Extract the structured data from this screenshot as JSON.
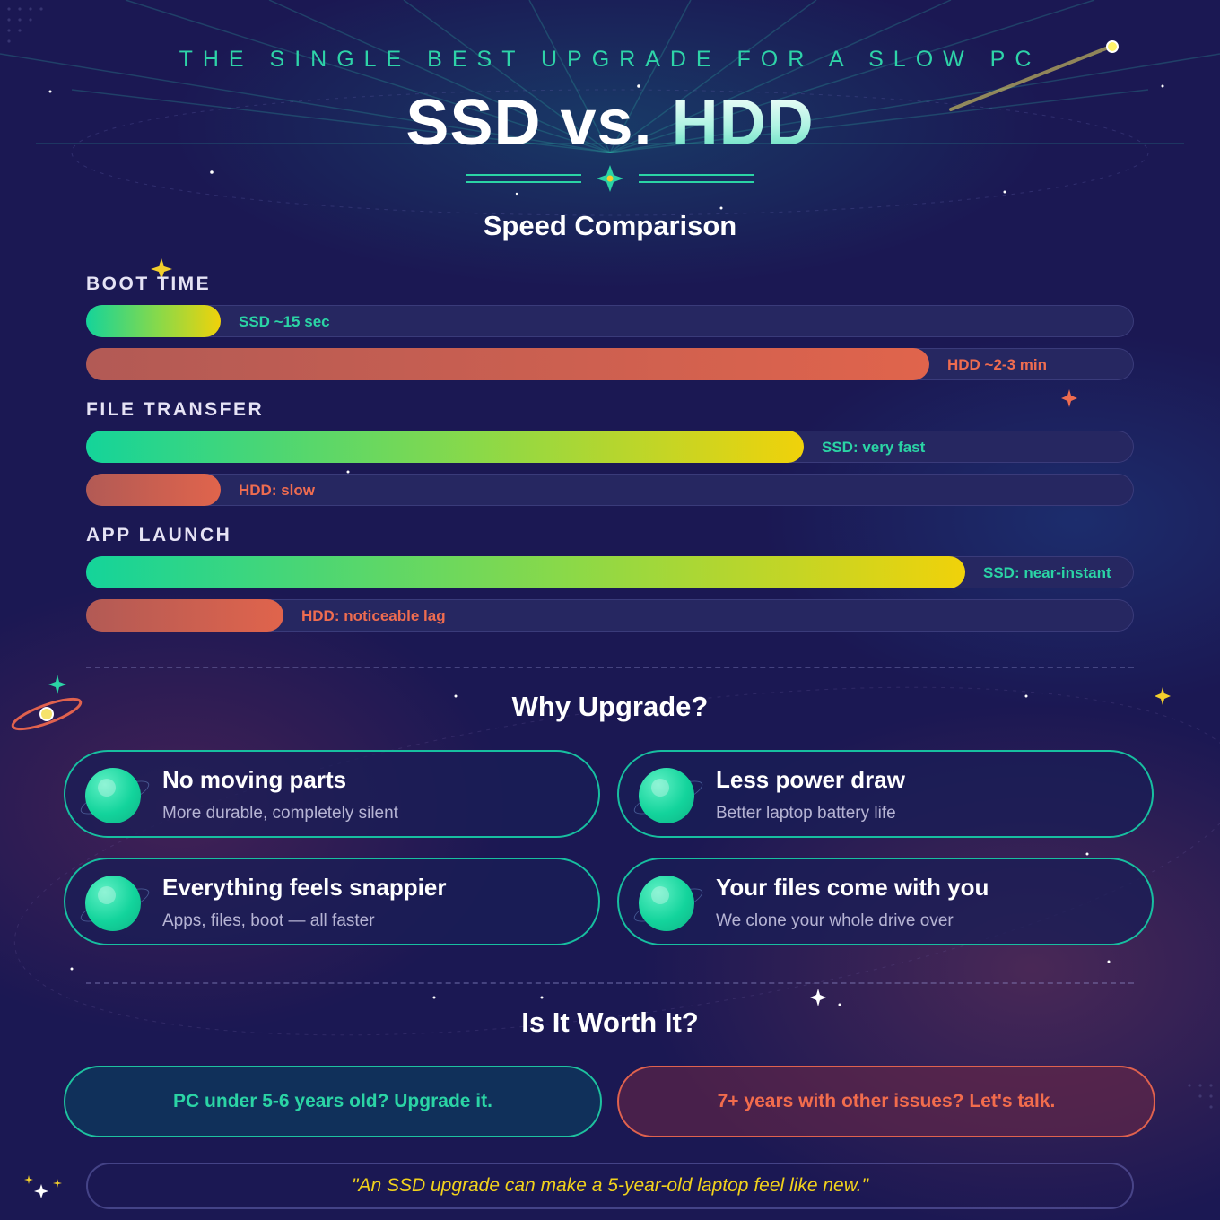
{
  "header": {
    "eyebrow": "THE SINGLE BEST UPGRADE FOR A SLOW PC",
    "title_left": "SSD vs.",
    "title_right": "HDD"
  },
  "speed": {
    "heading": "Speed Comparison",
    "categories": [
      {
        "label": "BOOT TIME",
        "ssd": {
          "label": "SSD ~15 sec",
          "fraction": 0.128
        },
        "hdd": {
          "label": "HDD ~2-3 min",
          "fraction": 0.805
        }
      },
      {
        "label": "FILE TRANSFER",
        "ssd": {
          "label": "SSD: very fast",
          "fraction": 0.685
        },
        "hdd": {
          "label": "HDD: slow",
          "fraction": 0.128
        }
      },
      {
        "label": "APP LAUNCH",
        "ssd": {
          "label": "SSD: near-instant",
          "fraction": 0.839
        },
        "hdd": {
          "label": "HDD: noticeable lag",
          "fraction": 0.188
        }
      }
    ]
  },
  "why": {
    "heading": "Why Upgrade?",
    "cards": [
      {
        "title": "No moving parts",
        "subtitle": "More durable, completely silent"
      },
      {
        "title": "Less power draw",
        "subtitle": "Better laptop battery life"
      },
      {
        "title": "Everything feels snappier",
        "subtitle": "Apps, files, boot — all faster"
      },
      {
        "title": "Your files come with you",
        "subtitle": "We clone your whole drive over"
      }
    ]
  },
  "worth": {
    "heading": "Is It Worth It?",
    "yes_label": "PC under 5-6 years old? Upgrade it.",
    "talk_label": "7+ years with other issues? Let's talk."
  },
  "quote": "\"An SSD upgrade can make a 5-year-old laptop feel like new.\"",
  "colors": {
    "background": "#1b1853",
    "accent_teal": "#2bd4a5",
    "accent_coral": "#ee6c50",
    "accent_yellow": "#f2d21c"
  }
}
